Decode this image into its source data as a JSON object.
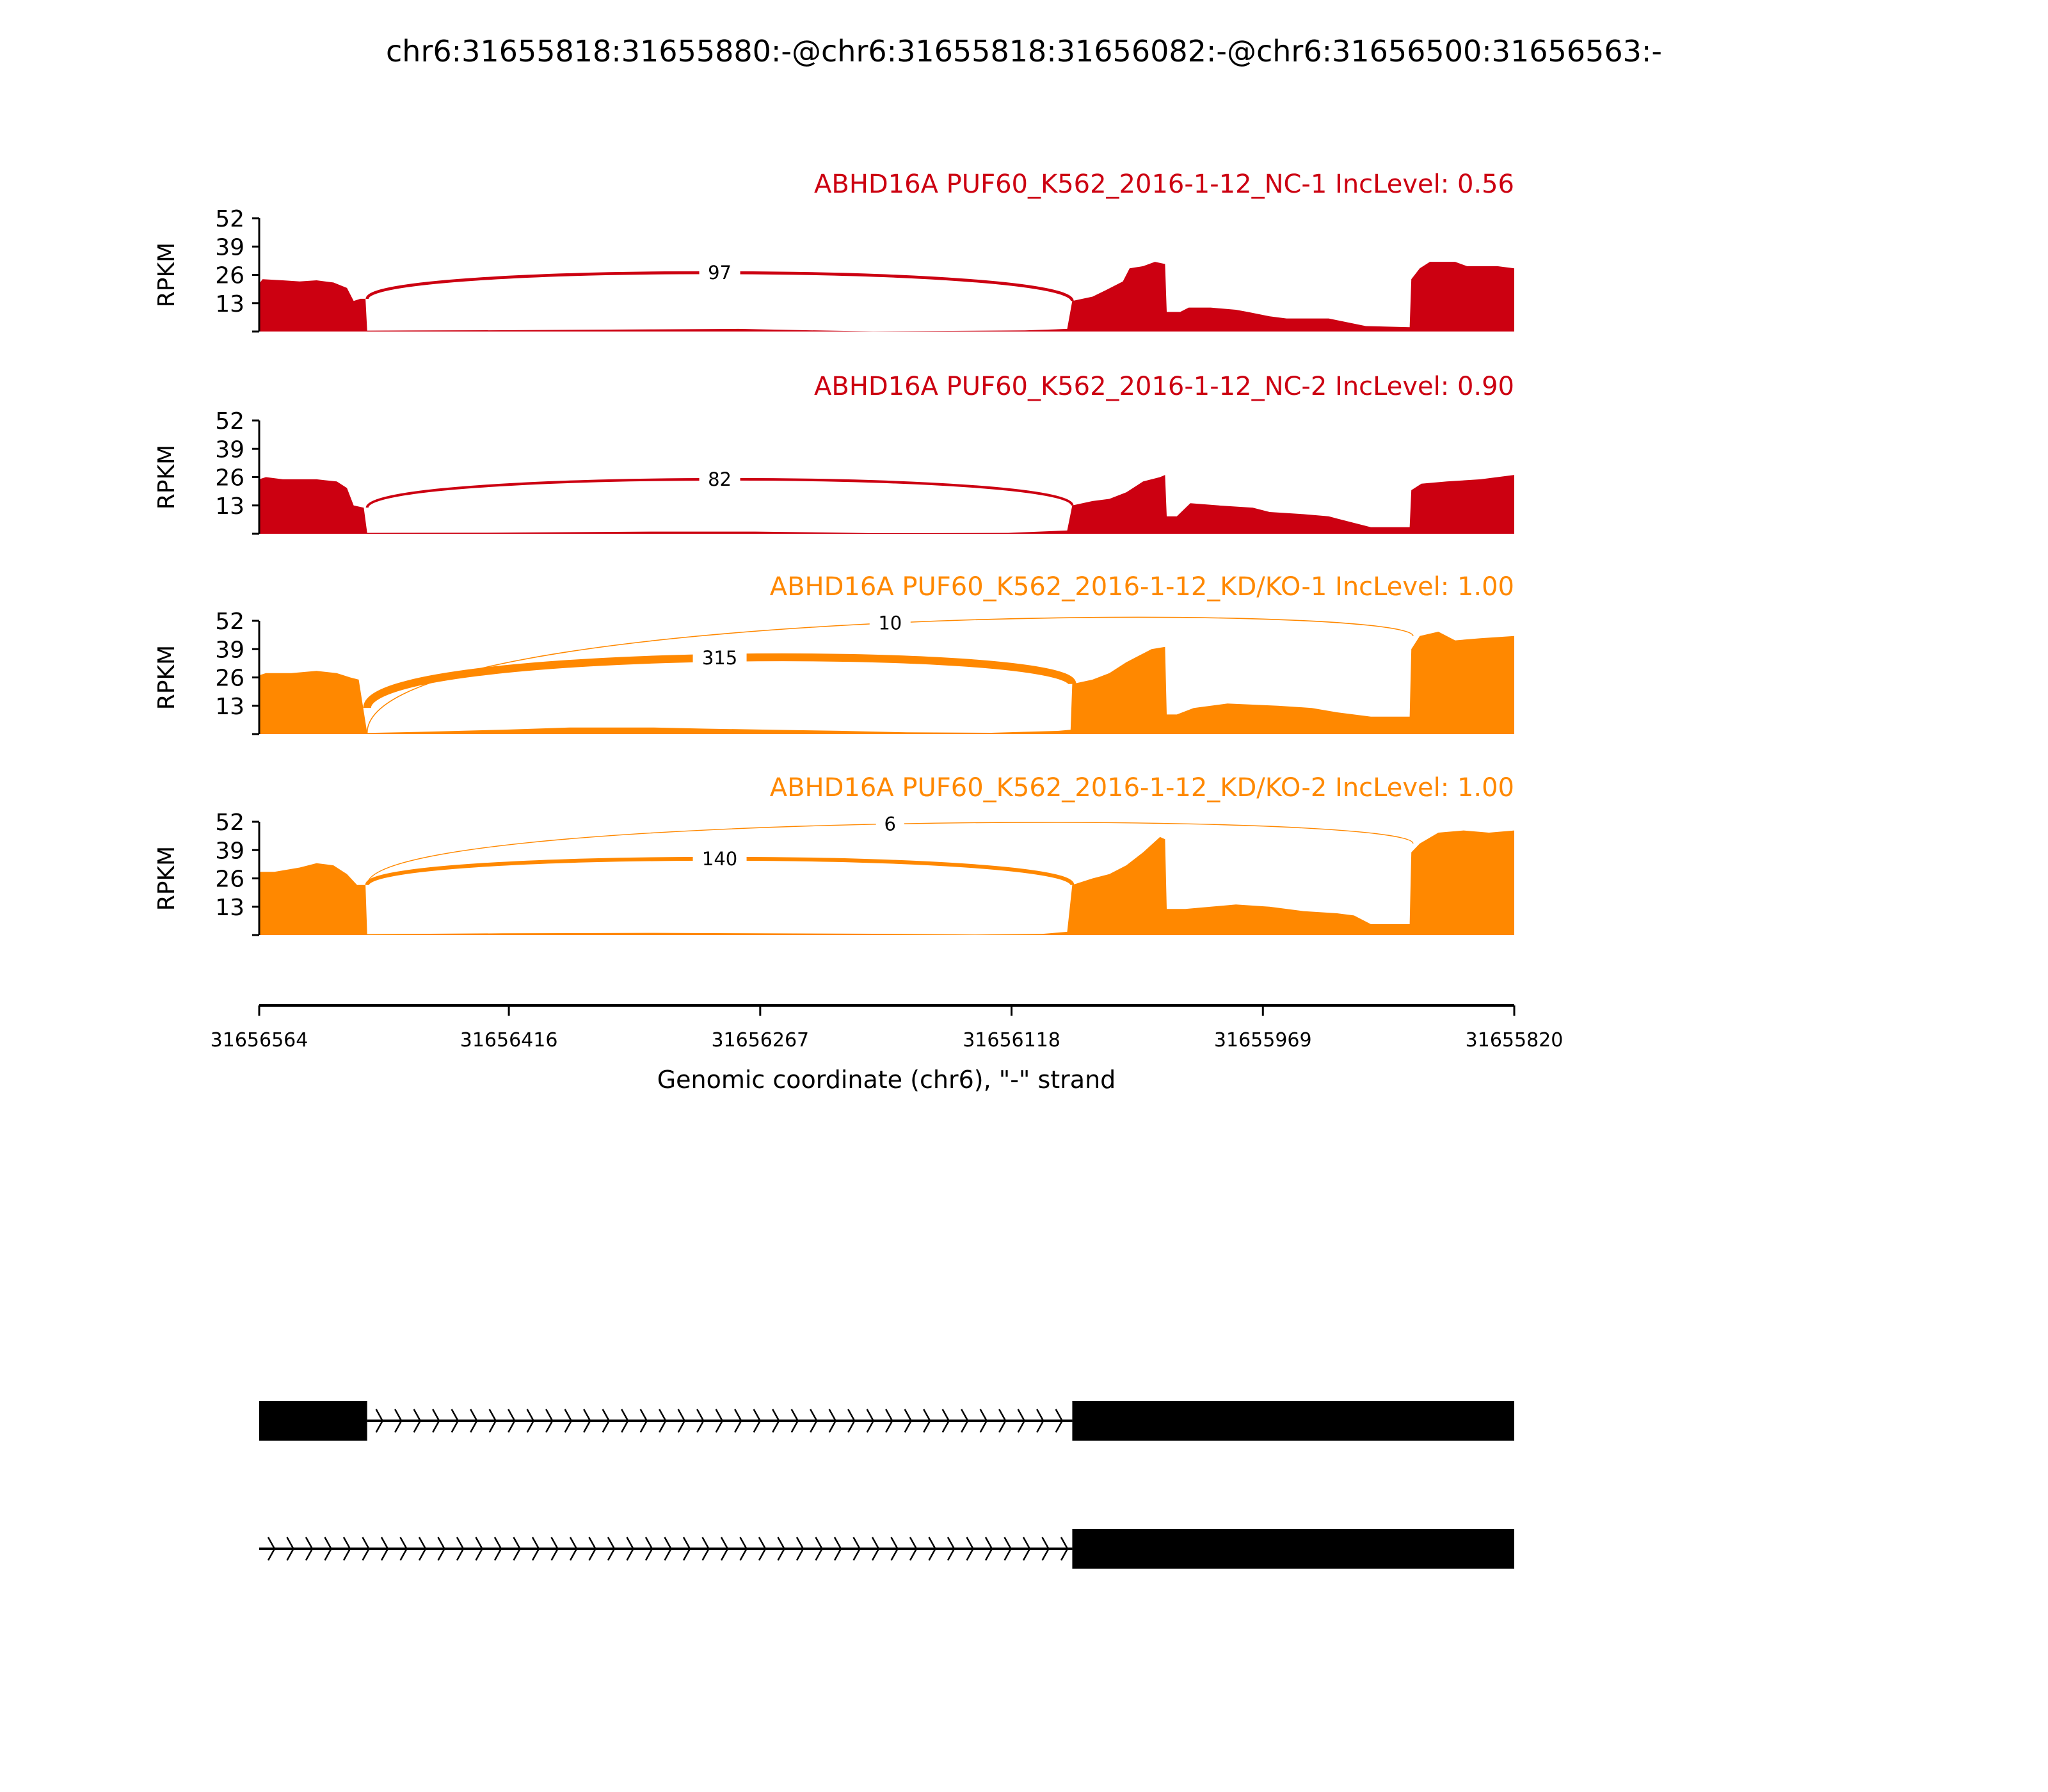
{
  "chart_data": {
    "type": "area",
    "title": "chr6:31655818:31655880:-@chr6:31655818:31656082:-@chr6:31656500:31656563:-",
    "xlabel": "Genomic coordinate (chr6), \"-\" strand",
    "ylabel": "RPKM",
    "xlim": [
      31656564,
      31655820
    ],
    "x_ticks": [
      "31656564",
      "31656416",
      "31656267",
      "31656118",
      "31655969",
      "31655820"
    ],
    "ylim": [
      0,
      52
    ],
    "y_ticks": [
      "13",
      "26",
      "39",
      "52"
    ],
    "colors": {
      "NC": "#CC0011",
      "KD": "#FF8800"
    },
    "tracks": [
      {
        "title": "ABHD16A PUF60_K562_2016-1-12_NC-1 IncLevel: 0.56",
        "group": "NC",
        "coverage": [
          [
            31656564,
            22
          ],
          [
            31656562,
            24
          ],
          [
            31656550,
            23.5
          ],
          [
            31656540,
            23
          ],
          [
            31656530,
            23.5
          ],
          [
            31656520,
            22.5
          ],
          [
            31656512,
            20
          ],
          [
            31656508,
            14
          ],
          [
            31656504,
            15
          ],
          [
            31656501,
            15
          ],
          [
            31656500,
            0.4
          ],
          [
            31656420,
            0.6
          ],
          [
            31656330,
            1
          ],
          [
            31656280,
            1.2
          ],
          [
            31656240,
            0.6
          ],
          [
            31656200,
            0.1
          ],
          [
            31656110,
            0.5
          ],
          [
            31656085,
            1.2
          ],
          [
            31656082,
            14
          ],
          [
            31656070,
            16
          ],
          [
            31656062,
            19
          ],
          [
            31656052,
            23
          ],
          [
            31656048,
            29
          ],
          [
            31656040,
            30
          ],
          [
            31656033,
            32
          ],
          [
            31656027,
            31
          ],
          [
            31656026,
            9
          ],
          [
            31656018,
            9
          ],
          [
            31656013,
            11
          ],
          [
            31656000,
            11
          ],
          [
            31655985,
            10
          ],
          [
            31655978,
            9
          ],
          [
            31655965,
            7
          ],
          [
            31655955,
            6
          ],
          [
            31655940,
            6
          ],
          [
            31655930,
            6
          ],
          [
            31655908,
            2.5
          ],
          [
            31655882,
            2
          ],
          [
            31655881,
            24
          ],
          [
            31655876,
            29
          ],
          [
            31655870,
            32
          ],
          [
            31655855,
            32
          ],
          [
            31655848,
            30
          ],
          [
            31655830,
            30
          ],
          [
            31655820,
            29
          ]
        ],
        "junctions": [
          {
            "from": 31656500,
            "to": 31656082,
            "count": "97"
          }
        ]
      },
      {
        "title": "ABHD16A PUF60_K562_2016-1-12_NC-2 IncLevel: 0.90",
        "group": "NC",
        "coverage": [
          [
            31656564,
            25
          ],
          [
            31656560,
            26
          ],
          [
            31656550,
            25
          ],
          [
            31656530,
            25
          ],
          [
            31656518,
            24
          ],
          [
            31656512,
            21
          ],
          [
            31656508,
            13
          ],
          [
            31656502,
            12
          ],
          [
            31656500,
            0.4
          ],
          [
            31656420,
            0.5
          ],
          [
            31656330,
            1
          ],
          [
            31656270,
            1
          ],
          [
            31656200,
            0.3
          ],
          [
            31656120,
            0.4
          ],
          [
            31656085,
            1.5
          ],
          [
            31656082,
            13
          ],
          [
            31656070,
            15
          ],
          [
            31656060,
            16
          ],
          [
            31656050,
            19
          ],
          [
            31656040,
            24
          ],
          [
            31656030,
            26
          ],
          [
            31656027,
            27
          ],
          [
            31656026,
            8
          ],
          [
            31656020,
            8
          ],
          [
            31656012,
            14
          ],
          [
            31655995,
            13
          ],
          [
            31655975,
            12
          ],
          [
            31655965,
            10
          ],
          [
            31655945,
            9
          ],
          [
            31655930,
            8
          ],
          [
            31655925,
            7
          ],
          [
            31655905,
            3
          ],
          [
            31655882,
            3
          ],
          [
            31655881,
            20
          ],
          [
            31655875,
            23
          ],
          [
            31655860,
            24
          ],
          [
            31655840,
            25
          ],
          [
            31655820,
            27
          ]
        ],
        "junctions": [
          {
            "from": 31656500,
            "to": 31656082,
            "count": "82"
          }
        ]
      },
      {
        "title": "ABHD16A PUF60_K562_2016-1-12_KD/KO-1 IncLevel: 1.00",
        "group": "KD",
        "coverage": [
          [
            31656564,
            27
          ],
          [
            31656560,
            28
          ],
          [
            31656545,
            28
          ],
          [
            31656530,
            29
          ],
          [
            31656518,
            28
          ],
          [
            31656510,
            26
          ],
          [
            31656505,
            25
          ],
          [
            31656500,
            0.5
          ],
          [
            31656470,
            1
          ],
          [
            31656420,
            2
          ],
          [
            31656380,
            3
          ],
          [
            31656330,
            3
          ],
          [
            31656300,
            2.5
          ],
          [
            31656260,
            2
          ],
          [
            31656220,
            1.5
          ],
          [
            31656180,
            0.8
          ],
          [
            31656130,
            0.6
          ],
          [
            31656090,
            1.5
          ],
          [
            31656083,
            2
          ],
          [
            31656082,
            23
          ],
          [
            31656070,
            25
          ],
          [
            31656060,
            28
          ],
          [
            31656050,
            33
          ],
          [
            31656040,
            37
          ],
          [
            31656035,
            39
          ],
          [
            31656027,
            40
          ],
          [
            31656026,
            9
          ],
          [
            31656020,
            9
          ],
          [
            31656010,
            12
          ],
          [
            31655990,
            14
          ],
          [
            31655960,
            13
          ],
          [
            31655940,
            12
          ],
          [
            31655925,
            10
          ],
          [
            31655905,
            8
          ],
          [
            31655882,
            8
          ],
          [
            31655881,
            39
          ],
          [
            31655876,
            45
          ],
          [
            31655865,
            47
          ],
          [
            31655855,
            43
          ],
          [
            31655840,
            44
          ],
          [
            31655820,
            45
          ]
        ],
        "junctions": [
          {
            "from": 31656500,
            "to": 31656082,
            "count": "315"
          },
          {
            "from": 31656500,
            "to": 31655880,
            "count": "10"
          }
        ]
      },
      {
        "title": "ABHD16A PUF60_K562_2016-1-12_KD/KO-2 IncLevel: 1.00",
        "group": "KD",
        "coverage": [
          [
            31656564,
            29
          ],
          [
            31656555,
            29
          ],
          [
            31656540,
            31
          ],
          [
            31656530,
            33
          ],
          [
            31656520,
            32
          ],
          [
            31656512,
            28
          ],
          [
            31656506,
            23
          ],
          [
            31656501,
            23
          ],
          [
            31656500,
            0.4
          ],
          [
            31656420,
            0.8
          ],
          [
            31656330,
            1
          ],
          [
            31656270,
            0.8
          ],
          [
            31656200,
            0.6
          ],
          [
            31656140,
            0.2
          ],
          [
            31656100,
            0.5
          ],
          [
            31656085,
            1.5
          ],
          [
            31656082,
            23
          ],
          [
            31656070,
            26
          ],
          [
            31656060,
            28
          ],
          [
            31656050,
            32
          ],
          [
            31656040,
            38
          ],
          [
            31656030,
            45
          ],
          [
            31656027,
            44
          ],
          [
            31656026,
            12
          ],
          [
            31656015,
            12
          ],
          [
            31656000,
            13
          ],
          [
            31655985,
            14
          ],
          [
            31655965,
            13
          ],
          [
            31655945,
            11
          ],
          [
            31655925,
            10
          ],
          [
            31655915,
            9
          ],
          [
            31655905,
            5
          ],
          [
            31655882,
            5
          ],
          [
            31655881,
            38
          ],
          [
            31655876,
            42
          ],
          [
            31655865,
            47
          ],
          [
            31655850,
            48
          ],
          [
            31655835,
            47
          ],
          [
            31655820,
            48
          ]
        ],
        "junctions": [
          {
            "from": 31656500,
            "to": 31656082,
            "count": "140"
          },
          {
            "from": 31656500,
            "to": 31655880,
            "count": "6"
          }
        ]
      }
    ],
    "transcripts": [
      {
        "exons": [
          [
            31656564,
            31656500
          ],
          [
            31656082,
            31655820
          ]
        ]
      },
      {
        "exons": [
          [
            31656082,
            31655820
          ]
        ]
      }
    ]
  }
}
